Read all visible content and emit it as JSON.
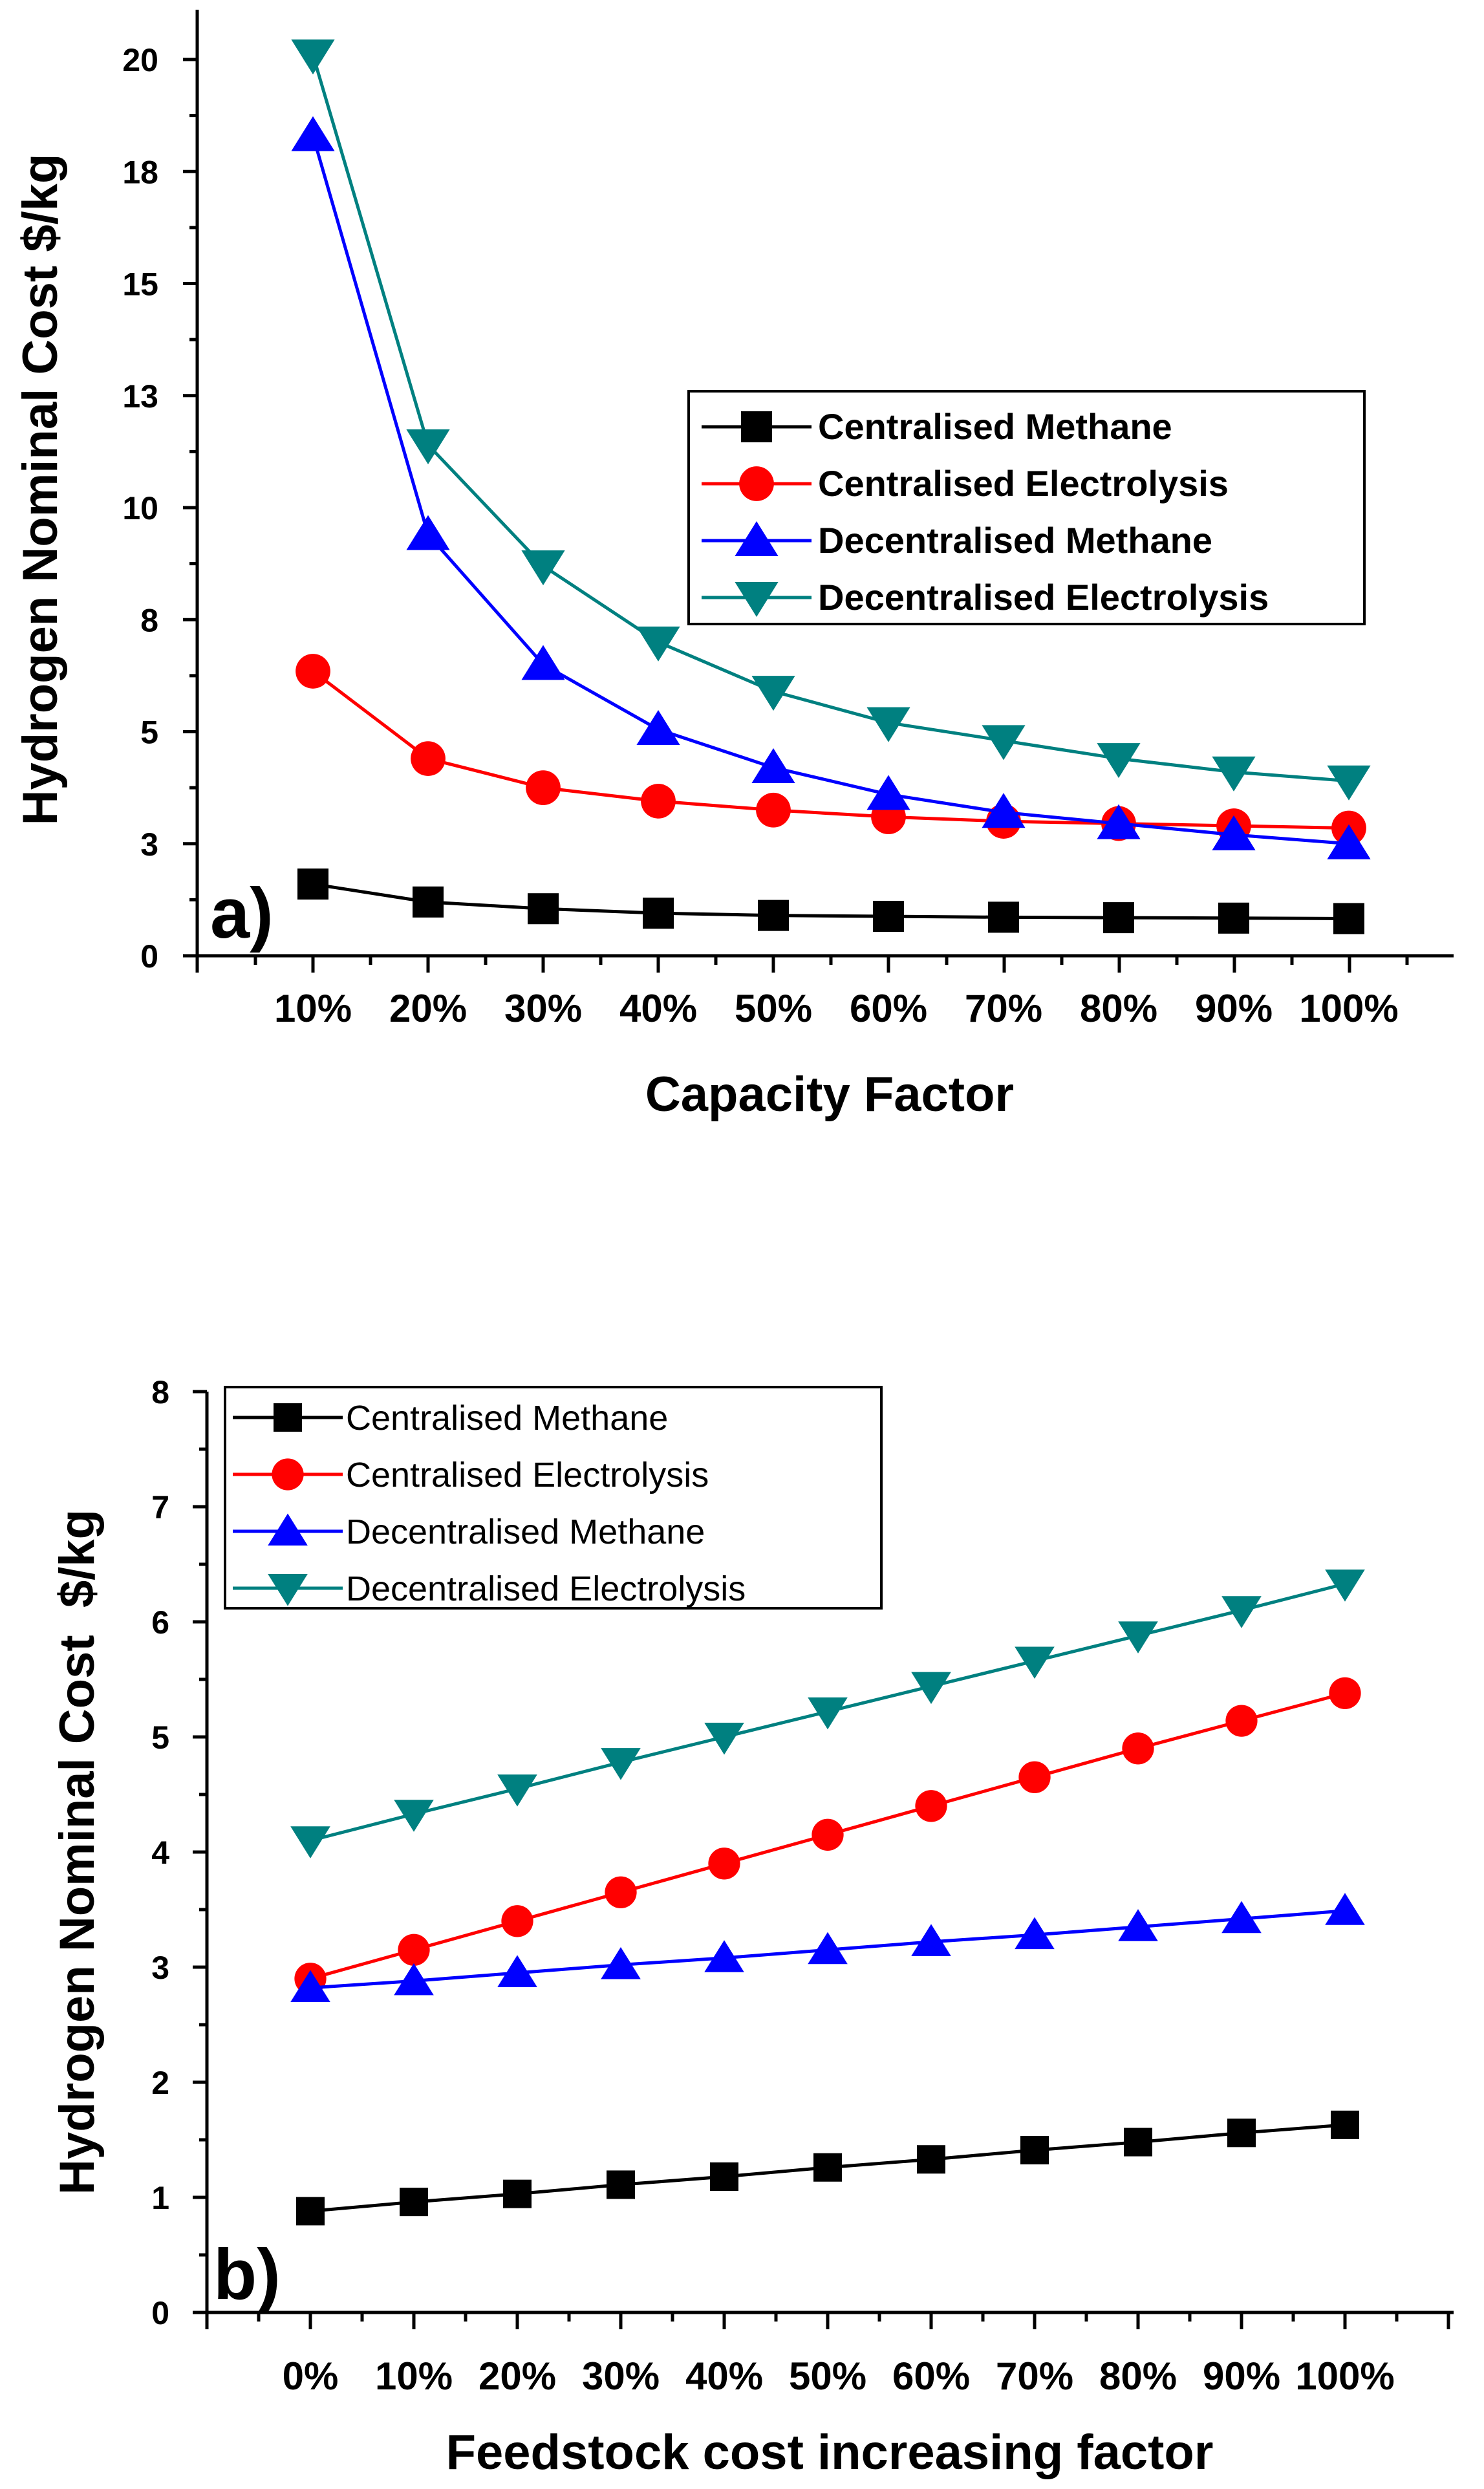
{
  "chart_data": [
    {
      "type": "line",
      "panel_label": "a)",
      "xlabel": "Capacity Factor",
      "ylabel": "Hydrogen Nominal Cost $/kg",
      "categories": [
        "10%",
        "20%",
        "30%",
        "40%",
        "50%",
        "60%",
        "70%",
        "80%",
        "90%",
        "100%"
      ],
      "yticks": [
        "0",
        "3",
        "5",
        "8",
        "10",
        "13",
        "15",
        "18",
        "20"
      ],
      "ylim": [
        0,
        21
      ],
      "grid": false,
      "legend_position": "upper-right",
      "series": [
        {
          "name": "Centralised Methane",
          "color": "#000000",
          "marker": "square",
          "values": [
            1.6,
            1.2,
            1.05,
            0.95,
            0.9,
            0.88,
            0.86,
            0.85,
            0.84,
            0.83
          ]
        },
        {
          "name": "Centralised Electrolysis",
          "color": "#ff0000",
          "marker": "circle",
          "values": [
            6.35,
            4.4,
            3.75,
            3.45,
            3.25,
            3.1,
            3.0,
            2.95,
            2.9,
            2.85
          ]
        },
        {
          "name": "Decentralised Methane",
          "color": "#0000ff",
          "marker": "triangle-up",
          "values": [
            18.3,
            9.4,
            6.5,
            5.05,
            4.2,
            3.6,
            3.2,
            2.95,
            2.7,
            2.5
          ]
        },
        {
          "name": "Decentralised Electrolysis",
          "color": "#008080",
          "marker": "triangle-down",
          "values": [
            20.1,
            11.4,
            8.7,
            7.0,
            5.9,
            5.2,
            4.8,
            4.4,
            4.1,
            3.9
          ]
        }
      ]
    },
    {
      "type": "line",
      "panel_label": "b)",
      "xlabel": "Feedstock cost increasing factor",
      "ylabel": "Hydrogen Nominal Cost  $/kg",
      "categories": [
        "0%",
        "10%",
        "20%",
        "30%",
        "40%",
        "50%",
        "60%",
        "70%",
        "80%",
        "90%",
        "100%"
      ],
      "yticks": [
        "0",
        "1",
        "2",
        "3",
        "4",
        "5",
        "6",
        "7",
        "8"
      ],
      "ylim": [
        0,
        8
      ],
      "grid": false,
      "legend_position": "upper-left",
      "series": [
        {
          "name": "Centralised Methane",
          "color": "#000000",
          "marker": "square",
          "values": [
            0.88,
            0.96,
            1.03,
            1.11,
            1.18,
            1.26,
            1.33,
            1.41,
            1.48,
            1.56,
            1.63
          ]
        },
        {
          "name": "Centralised Electrolysis",
          "color": "#ff0000",
          "marker": "circle",
          "values": [
            2.9,
            3.15,
            3.4,
            3.65,
            3.9,
            4.15,
            4.4,
            4.65,
            4.9,
            5.14,
            5.38
          ]
        },
        {
          "name": "Decentralised Methane",
          "color": "#0000ff",
          "marker": "triangle-up",
          "values": [
            2.82,
            2.88,
            2.95,
            3.02,
            3.08,
            3.15,
            3.22,
            3.28,
            3.35,
            3.42,
            3.49
          ]
        },
        {
          "name": "Decentralised Electrolysis",
          "color": "#008080",
          "marker": "triangle-down",
          "values": [
            4.1,
            4.33,
            4.55,
            4.78,
            5.0,
            5.22,
            5.44,
            5.66,
            5.88,
            6.1,
            6.33
          ]
        }
      ]
    }
  ]
}
